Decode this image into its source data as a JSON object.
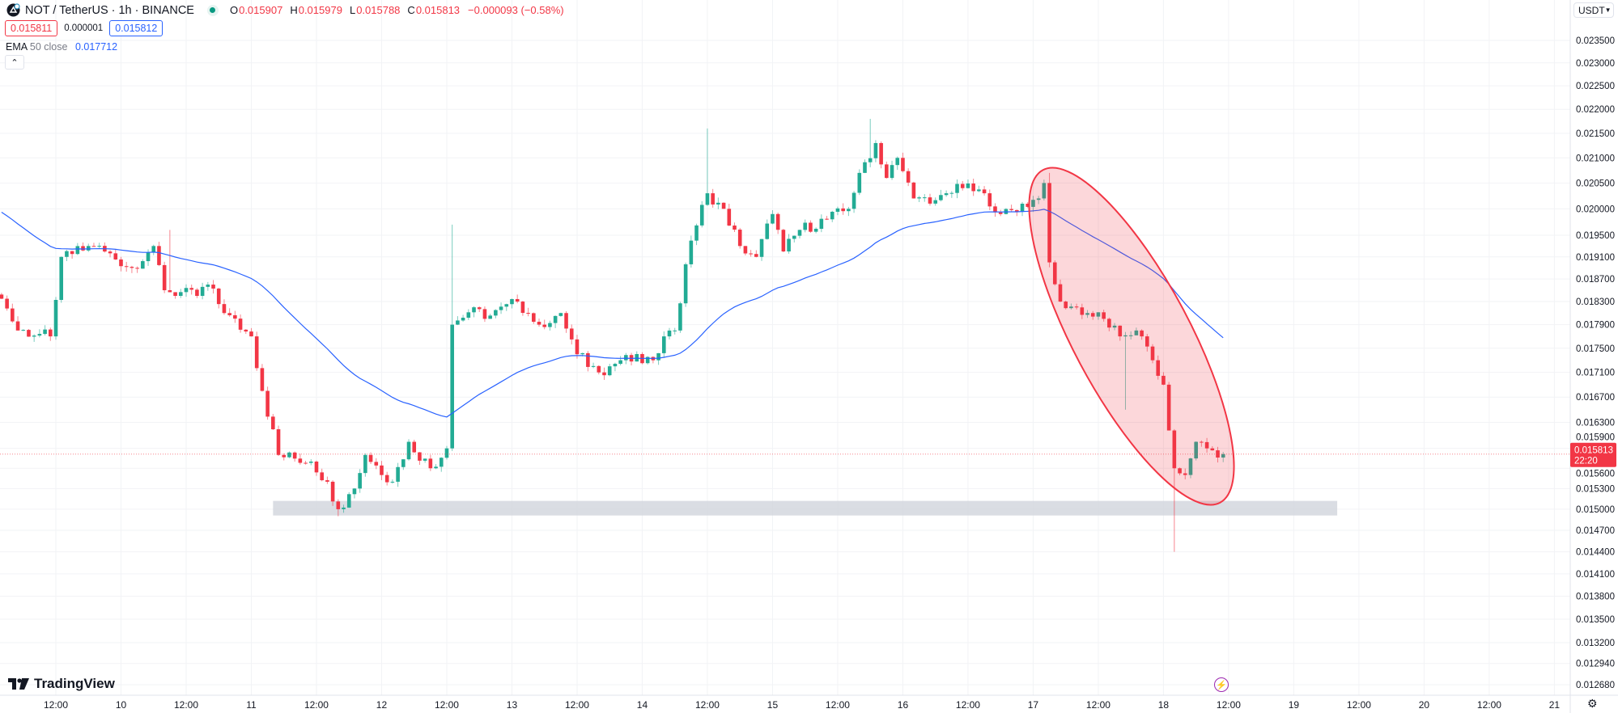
{
  "header": {
    "symbol": "NOT / TetherUS · 1h · BINANCE",
    "o_label": "O",
    "o": "0.015907",
    "h_label": "H",
    "h": "0.015979",
    "l_label": "L",
    "l": "0.015788",
    "c_label": "C",
    "c": "0.015813",
    "change": "−0.000093 (−0.58%)",
    "market_status": "open"
  },
  "trade": {
    "sell": "0.015811",
    "spread": "0.000001",
    "buy": "0.015812"
  },
  "indicator": {
    "name": "EMA",
    "params": "50 close",
    "value": "0.017712"
  },
  "collapse_icon": "chevron-up-icon",
  "currency": "USDT",
  "brand": "TradingView",
  "colors": {
    "up": "#22ab94",
    "down": "#f23645",
    "ema": "#2962ff",
    "ellipse": "#f23645",
    "zone": "#d1d4dc"
  },
  "chart_data": {
    "type": "candlestick",
    "timeframe": "1h",
    "scale": "log",
    "price_ticks": [
      "0.023500",
      "0.023000",
      "0.022500",
      "0.022000",
      "0.021500",
      "0.021000",
      "0.020500",
      "0.020000",
      "0.019500",
      "0.019100",
      "0.018700",
      "0.018300",
      "0.017900",
      "0.017500",
      "0.017100",
      "0.016700",
      "0.016300",
      "0.015900",
      "0.015600",
      "0.015300",
      "0.015000",
      "0.014700",
      "0.014400",
      "0.014100",
      "0.013800",
      "0.013500",
      "0.013200",
      "0.012940",
      "0.012680"
    ],
    "time_ticks": [
      {
        "label": "12:00",
        "hour": 12
      },
      {
        "label": "10",
        "hour": 24
      },
      {
        "label": "12:00",
        "hour": 36
      },
      {
        "label": "11",
        "hour": 48
      },
      {
        "label": "12:00",
        "hour": 60
      },
      {
        "label": "12",
        "hour": 72
      },
      {
        "label": "12:00",
        "hour": 84
      },
      {
        "label": "13",
        "hour": 96
      },
      {
        "label": "12:00",
        "hour": 108
      },
      {
        "label": "14",
        "hour": 120
      },
      {
        "label": "12:00",
        "hour": 132
      },
      {
        "label": "15",
        "hour": 144
      },
      {
        "label": "12:00",
        "hour": 156
      },
      {
        "label": "16",
        "hour": 168
      },
      {
        "label": "12:00",
        "hour": 180
      },
      {
        "label": "17",
        "hour": 192
      },
      {
        "label": "12:00",
        "hour": 204
      },
      {
        "label": "18",
        "hour": 216
      },
      {
        "label": "12:00",
        "hour": 228
      },
      {
        "label": "19",
        "hour": 240
      },
      {
        "label": "12:00",
        "hour": 252
      },
      {
        "label": "20",
        "hour": 264
      },
      {
        "label": "12:00",
        "hour": 276
      },
      {
        "label": "21",
        "hour": 288
      }
    ],
    "close_keypoints": [
      [
        2,
        0.01835
      ],
      [
        5,
        0.0178
      ],
      [
        11,
        0.0177
      ],
      [
        13,
        0.0191
      ],
      [
        19,
        0.0193
      ],
      [
        26,
        0.0189
      ],
      [
        30,
        0.0193
      ],
      [
        32,
        0.0185
      ],
      [
        38,
        0.0184
      ],
      [
        40,
        0.0186
      ],
      [
        43,
        0.0181
      ],
      [
        48,
        0.0177
      ],
      [
        50,
        0.0168
      ],
      [
        53,
        0.0158
      ],
      [
        59,
        0.0157
      ],
      [
        62,
        0.0154
      ],
      [
        64,
        0.015
      ],
      [
        67,
        0.0153
      ],
      [
        69,
        0.0158
      ],
      [
        74,
        0.0154
      ],
      [
        77,
        0.016
      ],
      [
        81,
        0.0156
      ],
      [
        84,
        0.0159
      ],
      [
        85,
        0.0179
      ],
      [
        89,
        0.0182
      ],
      [
        91,
        0.018
      ],
      [
        97,
        0.0183
      ],
      [
        101,
        0.0179
      ],
      [
        105,
        0.0181
      ],
      [
        108,
        0.0174
      ],
      [
        112,
        0.0171
      ],
      [
        116,
        0.0173
      ],
      [
        122,
        0.0173
      ],
      [
        124,
        0.0177
      ],
      [
        126,
        0.0178
      ],
      [
        129,
        0.0194
      ],
      [
        132,
        0.0203
      ],
      [
        135,
        0.02
      ],
      [
        138,
        0.0193
      ],
      [
        141,
        0.0191
      ],
      [
        144,
        0.0199
      ],
      [
        146,
        0.0192
      ],
      [
        149,
        0.0196
      ],
      [
        154,
        0.0198
      ],
      [
        158,
        0.02
      ],
      [
        160,
        0.0207
      ],
      [
        163,
        0.0213
      ],
      [
        165,
        0.0206
      ],
      [
        167,
        0.021
      ],
      [
        170,
        0.0202
      ],
      [
        173,
        0.0201
      ],
      [
        176,
        0.0203
      ],
      [
        179,
        0.0204
      ],
      [
        183,
        0.0203
      ],
      [
        186,
        0.0199
      ],
      [
        193,
        0.0202
      ],
      [
        194,
        0.0205
      ],
      [
        195,
        0.019
      ],
      [
        197,
        0.0183
      ],
      [
        202,
        0.0181
      ],
      [
        205,
        0.018
      ],
      [
        208,
        0.0177
      ],
      [
        211,
        0.0178
      ],
      [
        214,
        0.0173
      ],
      [
        216,
        0.0169
      ],
      [
        218,
        0.0156
      ],
      [
        220,
        0.0155
      ],
      [
        222,
        0.016
      ],
      [
        224,
        0.0159
      ],
      [
        227,
        0.015813
      ]
    ],
    "notable_wicks": [
      [
        85,
        0.0197
      ],
      [
        64,
        0.0149
      ],
      [
        132,
        0.0216
      ],
      [
        162,
        0.0218
      ],
      [
        209,
        0.0165
      ],
      [
        218,
        0.0144
      ],
      [
        33,
        0.0196
      ],
      [
        195,
        0.0207
      ]
    ],
    "ema_period": 50,
    "ema_start": 0.02,
    "current_price": {
      "value": "0.015813",
      "countdown": "22:20"
    },
    "support_zone": {
      "from_hour": 52,
      "to_hour": 248,
      "low": 0.01491,
      "high": 0.01512
    },
    "ellipse": {
      "label": "highlight-drop"
    }
  }
}
